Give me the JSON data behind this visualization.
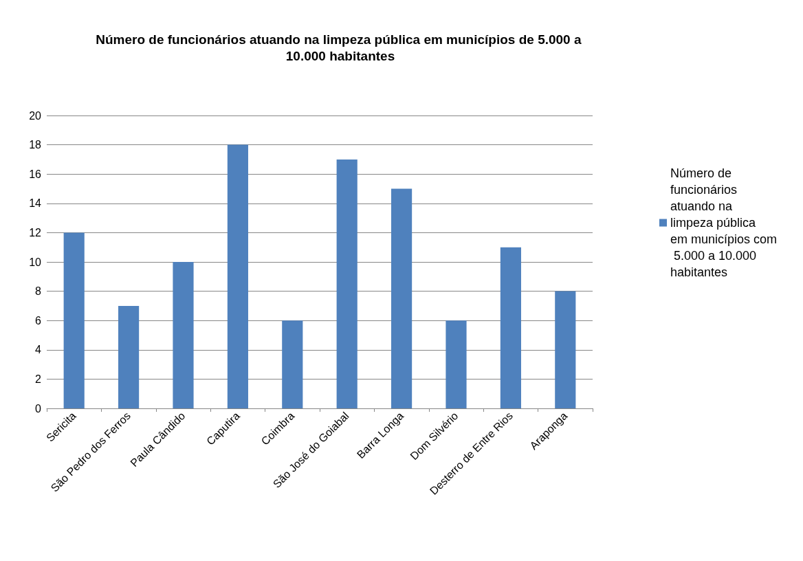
{
  "chart_data": {
    "type": "bar",
    "title": "Número de funcionários atuando na limpeza pública em municípios de 5.000 a 10.000 habitantes",
    "categories": [
      "Sericita",
      "São Pedro dos Ferros",
      "Paula Cândido",
      "Caputira",
      "Coimbra",
      "São José do Goiabal",
      "Barra Longa",
      "Dom Silvério",
      "Desterro de Entre Rios",
      "Araponga"
    ],
    "series": [
      {
        "name": "Número de funcionários atuando na limpeza pública em municípios com 5.000 a 10.000 habitantes",
        "color": "#4f81bd",
        "values": [
          12,
          7,
          10,
          18,
          6,
          17,
          15,
          6,
          11,
          8
        ]
      }
    ],
    "ylim": [
      0,
      20
    ],
    "yticks": [
      0,
      2,
      4,
      6,
      8,
      10,
      12,
      14,
      16,
      18,
      20
    ],
    "grid": "y",
    "legend": "right"
  }
}
